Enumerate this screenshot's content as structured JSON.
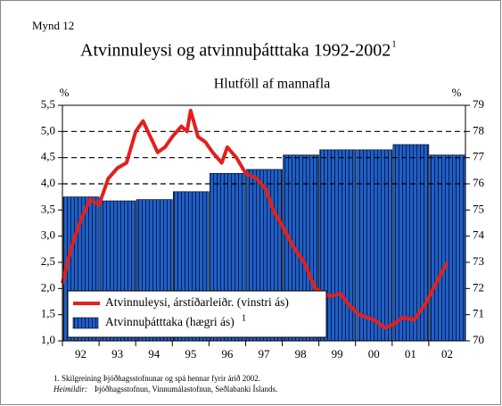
{
  "chart_data": {
    "type": "bar_line",
    "figure_label": "Mynd 12",
    "title": "Atvinnuleysi og atvinnuþátttaka 1992-2002",
    "title_note": "1",
    "subtitle": "Hlutföll af mannafla",
    "y_unit": "%",
    "y2_unit": "%",
    "categories": [
      "92",
      "93",
      "94",
      "95",
      "96",
      "97",
      "98",
      "99",
      "00",
      "01",
      "02"
    ],
    "xlim": [
      1992,
      2003
    ],
    "ylim": [
      1.0,
      5.5
    ],
    "yticks": [
      {
        "value": 1.0,
        "label": "1,0"
      },
      {
        "value": 1.5,
        "label": "1,5"
      },
      {
        "value": 2.0,
        "label": "2,0"
      },
      {
        "value": 2.5,
        "label": "2,5"
      },
      {
        "value": 3.0,
        "label": "3,0"
      },
      {
        "value": 3.5,
        "label": "3,5"
      },
      {
        "value": 4.0,
        "label": "4,0"
      },
      {
        "value": 4.5,
        "label": "4,5"
      },
      {
        "value": 5.0,
        "label": "5,0"
      },
      {
        "value": 5.5,
        "label": "5,5"
      }
    ],
    "y2lim": [
      70,
      79
    ],
    "y2ticks": [
      70,
      71,
      72,
      73,
      74,
      75,
      76,
      77,
      78,
      79
    ],
    "grid_values": [
      4.0,
      4.5,
      5.0
    ],
    "series": [
      {
        "name": "Atvinnuþátttaka (hægri ás)",
        "name_note": "1",
        "type": "bar",
        "axis": "y2",
        "color": "#1f5fc4",
        "stripe_color": "#0a1f5a",
        "values": [
          75.5,
          75.35,
          75.4,
          75.7,
          76.4,
          76.55,
          77.1,
          77.3,
          77.3,
          77.5,
          77.1
        ]
      },
      {
        "name": "Atvinnuleysi, árstíðarleiðr. (vinstri ás)",
        "type": "line",
        "axis": "y",
        "color": "#e3201b",
        "x": [
          1992.0,
          1992.25,
          1992.5,
          1992.75,
          1993.0,
          1993.25,
          1993.5,
          1993.75,
          1994.0,
          1994.2,
          1994.4,
          1994.6,
          1994.8,
          1995.0,
          1995.25,
          1995.4,
          1995.5,
          1995.7,
          1995.9,
          1996.1,
          1996.35,
          1996.5,
          1996.75,
          1997.0,
          1997.3,
          1997.55,
          1997.75,
          1998.0,
          1998.3,
          1998.6,
          1998.9,
          1999.3,
          1999.6,
          1999.8,
          2000.1,
          2000.5,
          2000.8,
          2001.0,
          2001.3,
          2001.6,
          2001.9,
          2002.2,
          2002.5
        ],
        "values": [
          2.1,
          2.8,
          3.3,
          3.7,
          3.6,
          4.1,
          4.3,
          4.4,
          5.0,
          5.2,
          4.9,
          4.6,
          4.7,
          4.9,
          5.1,
          5.0,
          5.4,
          4.9,
          4.8,
          4.6,
          4.4,
          4.7,
          4.5,
          4.2,
          4.1,
          3.9,
          3.5,
          3.2,
          2.8,
          2.5,
          2.0,
          1.85,
          1.9,
          1.7,
          1.5,
          1.4,
          1.25,
          1.3,
          1.45,
          1.4,
          1.7,
          2.1,
          2.5
        ]
      }
    ],
    "footnote": "1. Skilgreining Þjóðhagsstofnunar og spá hennar fyrir árið 2002.",
    "sources_label": "Heimildir:",
    "sources": "Þjóðhagsstofnun, Vinnumálastofnun, Seðlabanki Íslands."
  }
}
